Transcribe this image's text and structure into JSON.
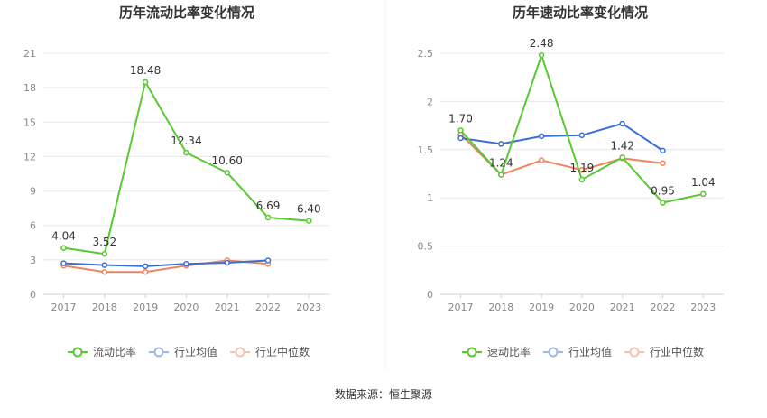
{
  "source_label": "数据来源：恒生聚源",
  "colors": {
    "main_current": "#5ac832",
    "main_quick": "#5ac832",
    "industry_avg": "#3a6fd8",
    "industry_median": "#f0845c",
    "legend_avg_marker": "#9fb8ec",
    "legend_median_marker": "#f6c3ad"
  },
  "chart_data": [
    {
      "type": "line",
      "title": "历年流动比率变化情况",
      "categories": [
        "2017",
        "2018",
        "2019",
        "2020",
        "2021",
        "2022",
        "2023"
      ],
      "ylim": [
        0,
        21
      ],
      "yticks": [
        "0",
        "3",
        "6",
        "9",
        "12",
        "15",
        "18",
        "21"
      ],
      "grid": true,
      "legend_position": "bottom",
      "series": [
        {
          "name": "流动比率",
          "values": [
            4.04,
            3.52,
            18.48,
            12.34,
            10.6,
            6.69,
            6.4
          ],
          "labels": [
            "4.04",
            "3.52",
            "18.48",
            "12.34",
            "10.60",
            "6.69",
            "6.40"
          ]
        },
        {
          "name": "行业均值",
          "values": [
            2.7,
            2.55,
            2.45,
            2.65,
            2.75,
            2.95,
            null
          ]
        },
        {
          "name": "行业中位数",
          "values": [
            2.5,
            1.95,
            1.95,
            2.5,
            2.95,
            2.65,
            null
          ]
        }
      ]
    },
    {
      "type": "line",
      "title": "历年速动比率变化情况",
      "categories": [
        "2017",
        "2018",
        "2019",
        "2020",
        "2021",
        "2022",
        "2023"
      ],
      "ylim": [
        0,
        2.5
      ],
      "yticks": [
        "0",
        "0.5",
        "1",
        "1.5",
        "2",
        "2.5"
      ],
      "grid": true,
      "legend_position": "bottom",
      "series": [
        {
          "name": "速动比率",
          "values": [
            1.7,
            1.24,
            2.48,
            1.19,
            1.42,
            0.95,
            1.04
          ],
          "labels": [
            "1.70",
            "1.24",
            "2.48",
            "1.19",
            "1.42",
            "0.95",
            "1.04"
          ]
        },
        {
          "name": "行业均值",
          "values": [
            1.62,
            1.56,
            1.64,
            1.65,
            1.77,
            1.49,
            null
          ]
        },
        {
          "name": "行业中位数",
          "values": [
            1.66,
            1.24,
            1.39,
            1.29,
            1.41,
            1.36,
            null
          ]
        }
      ]
    }
  ]
}
